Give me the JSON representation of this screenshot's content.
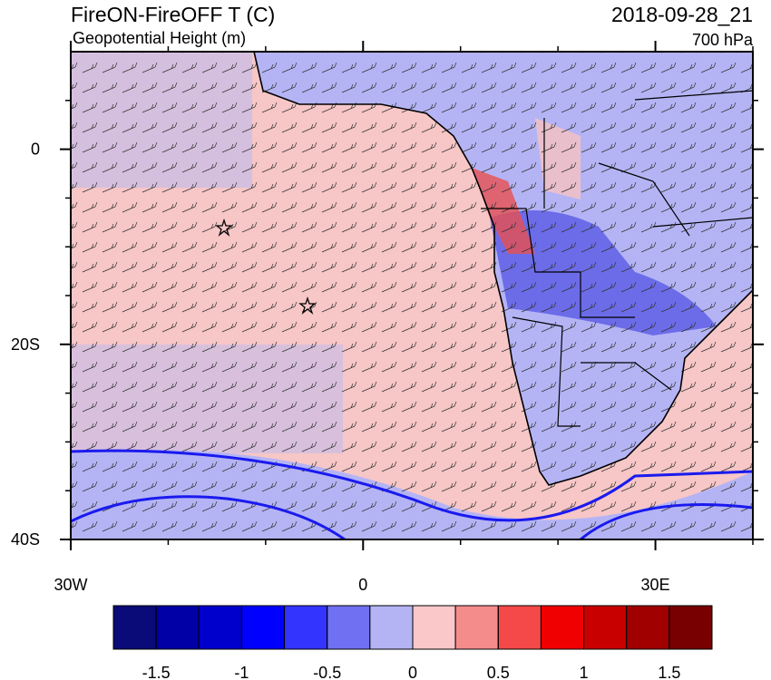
{
  "header": {
    "title": "FireON-FireOFF T (C)",
    "subtitle": "Geopotential Height (m)",
    "datetime": "2018-09-28_21",
    "level": "700 hPa"
  },
  "map": {
    "lon_range": [
      -30,
      40
    ],
    "lat_range": [
      -40,
      10
    ],
    "lon_ticks": [
      {
        "value": -30,
        "label": "30W"
      },
      0,
      {
        "value": 30,
        "label": "30E"
      }
    ],
    "lat_ticks": [
      0,
      {
        "value": -20,
        "label": "20S"
      },
      {
        "value": -40,
        "label": "40S"
      }
    ],
    "lon_minor_ticks": [
      -20,
      -10,
      10,
      20,
      40
    ],
    "lat_minor_ticks": [
      5,
      -5,
      -10,
      -15,
      -25,
      -30,
      -35
    ]
  },
  "colorbar": {
    "range": [
      -1.75,
      1.75
    ],
    "ticks": [
      -1.5,
      -1,
      -0.5,
      0,
      0.5,
      1,
      1.5
    ],
    "colors": [
      "#0a0a78",
      "#0000a6",
      "#0000cc",
      "#0000ff",
      "#3434ff",
      "#7070f2",
      "#b4b4f5",
      "#fac8c8",
      "#f58c8c",
      "#f54848",
      "#f00000",
      "#c80000",
      "#a00000",
      "#780000"
    ]
  }
}
